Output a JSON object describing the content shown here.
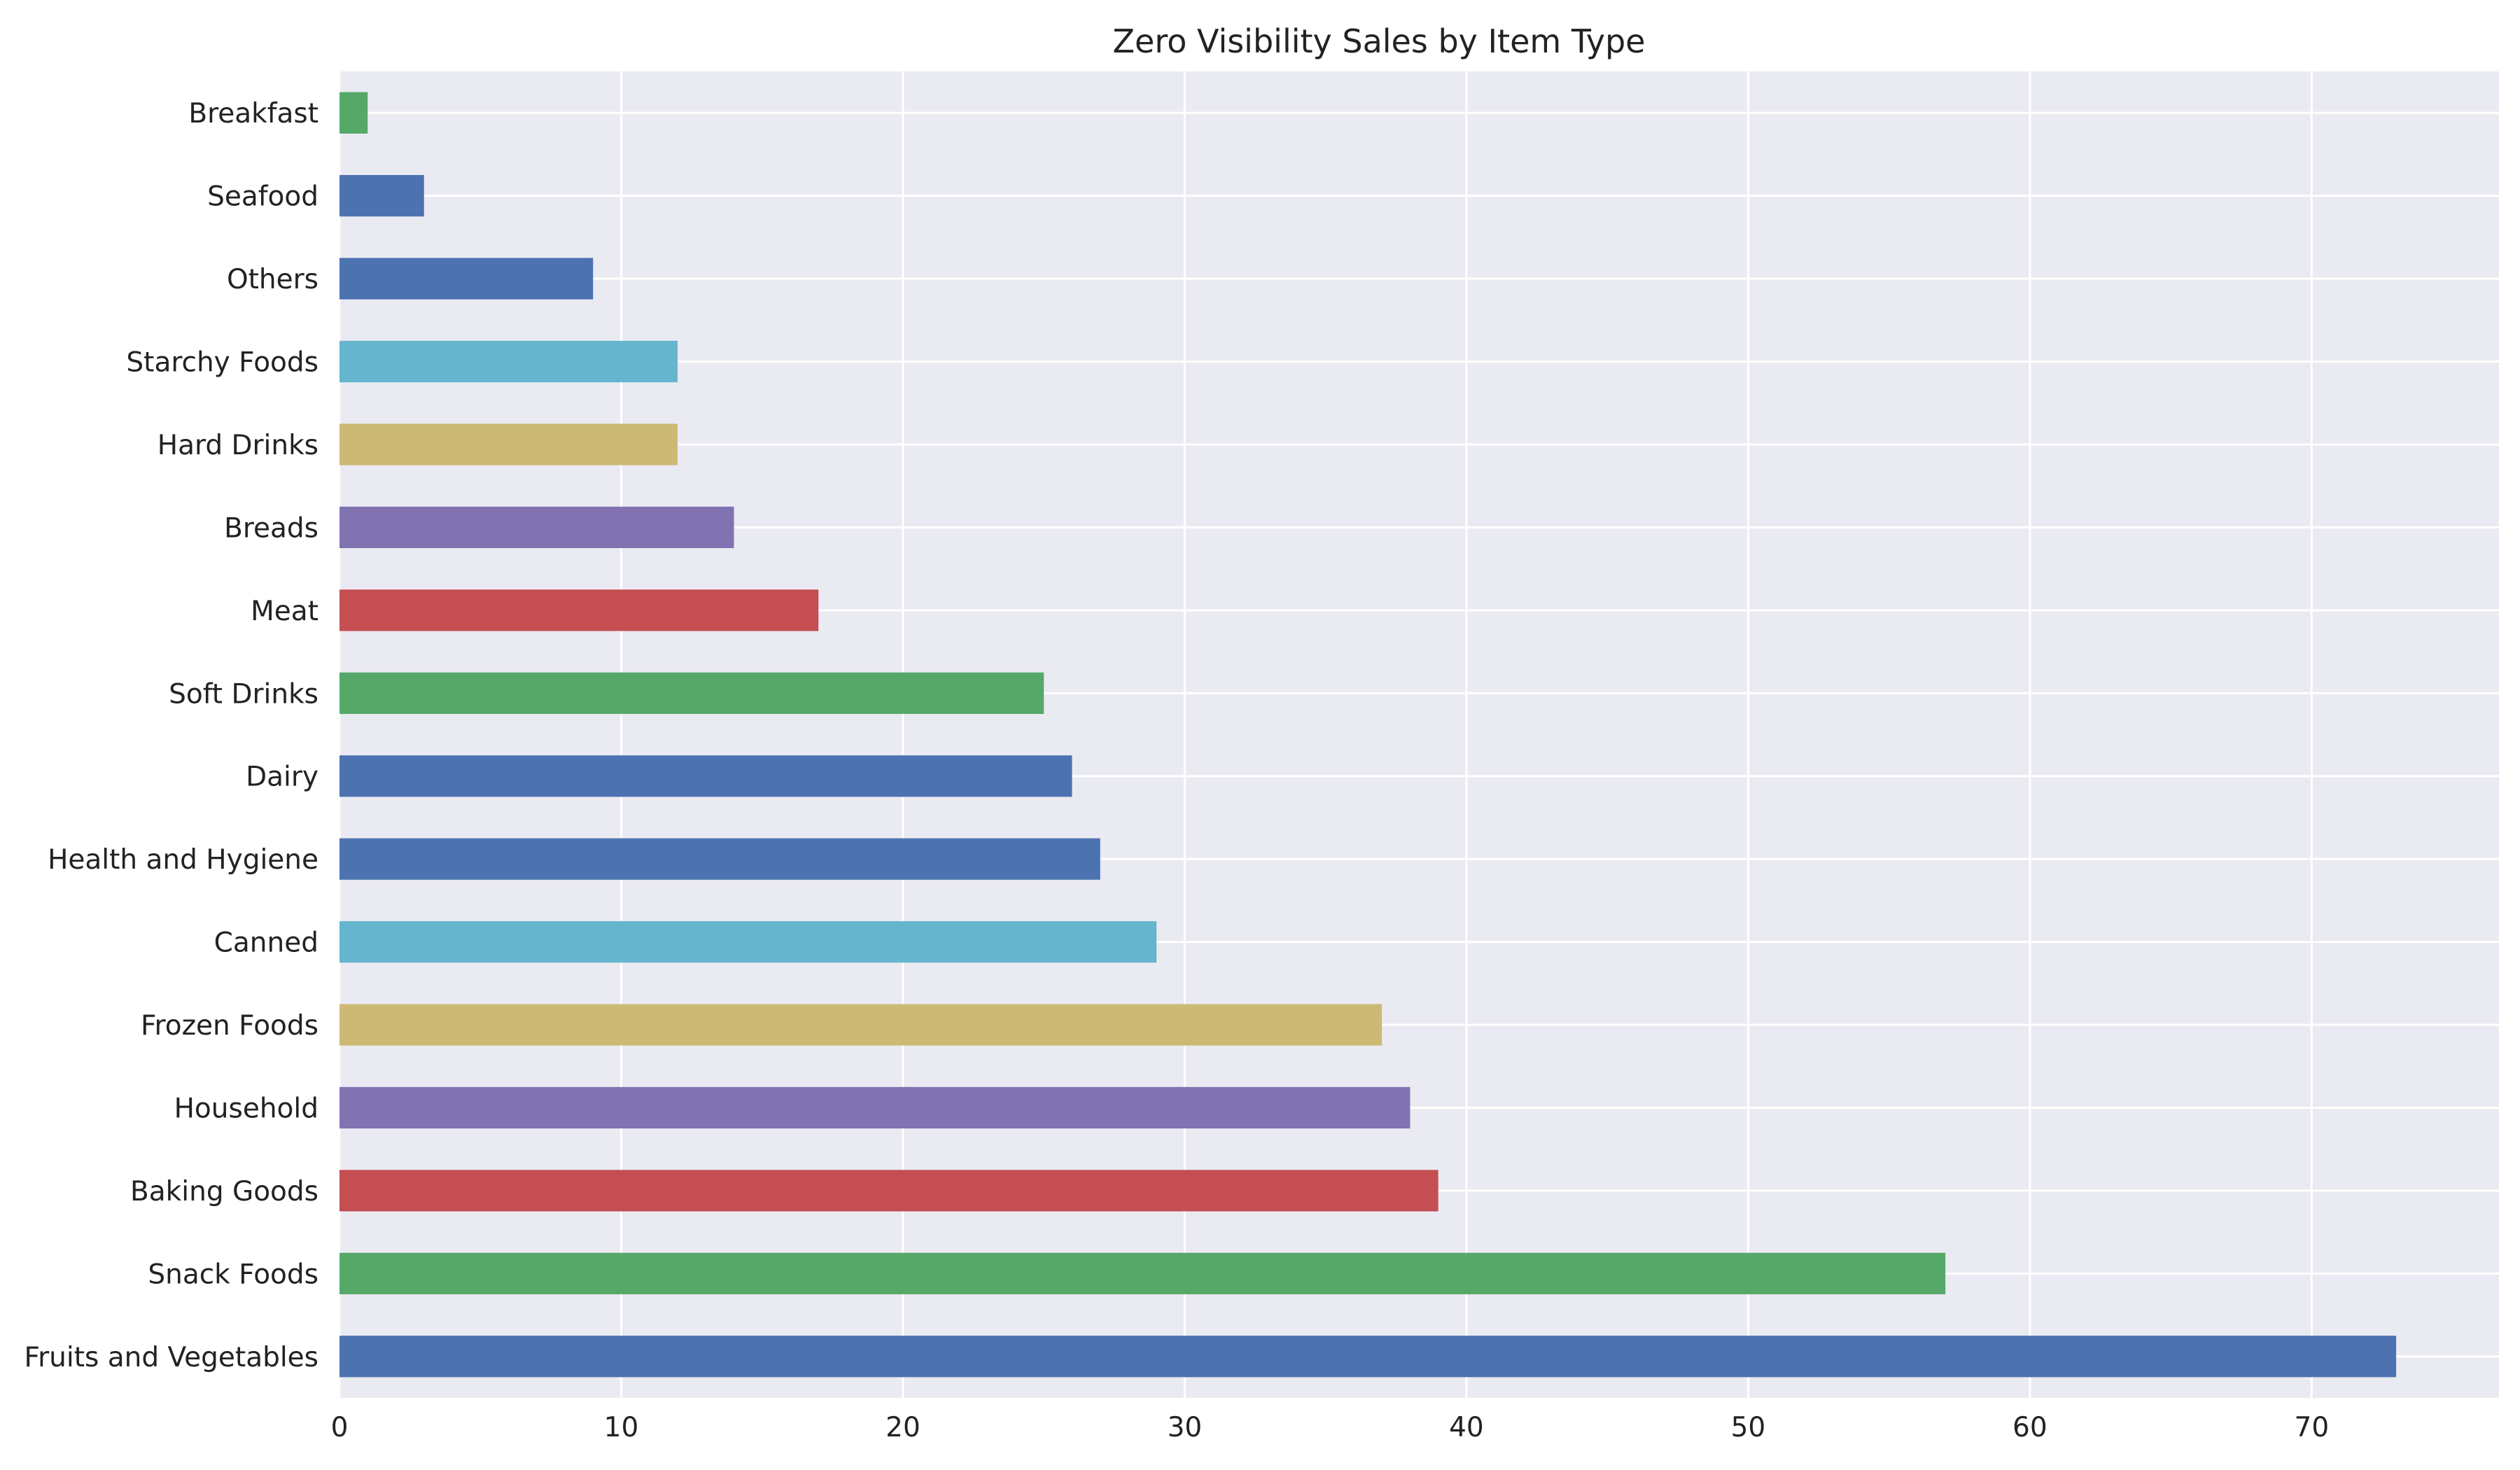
{
  "chart_data": {
    "type": "bar",
    "orientation": "horizontal",
    "title": "Zero Visibility Sales by Item Type",
    "xlabel": "",
    "ylabel": "",
    "categories": [
      "Fruits and Vegetables",
      "Snack Foods",
      "Baking Goods",
      "Household",
      "Frozen Foods",
      "Canned",
      "Health and Hygiene",
      "Dairy",
      "Soft Drinks",
      "Meat",
      "Breads",
      "Hard Drinks",
      "Starchy Foods",
      "Others",
      "Seafood",
      "Breakfast"
    ],
    "values": [
      73,
      57,
      39,
      38,
      37,
      29,
      27,
      26,
      25,
      17,
      14,
      12,
      12,
      9,
      3,
      1
    ],
    "bar_colors": [
      "#4c72b0",
      "#55a868",
      "#c44e52",
      "#8172b2",
      "#ccb974",
      "#64b5cd",
      "#4c72b0",
      "#4c72b0",
      "#55a868",
      "#c44e52",
      "#8172b2",
      "#ccb974",
      "#64b5cd",
      "#4c72b0",
      "#4c72b0",
      "#55a868"
    ],
    "xlim": [
      0,
      76.65
    ],
    "xticks": [
      0,
      10,
      20,
      30,
      40,
      50,
      60,
      70
    ],
    "grid": true,
    "legend": "none",
    "style": {
      "background": "#eaeaf2",
      "grid_color": "#ffffff"
    }
  }
}
